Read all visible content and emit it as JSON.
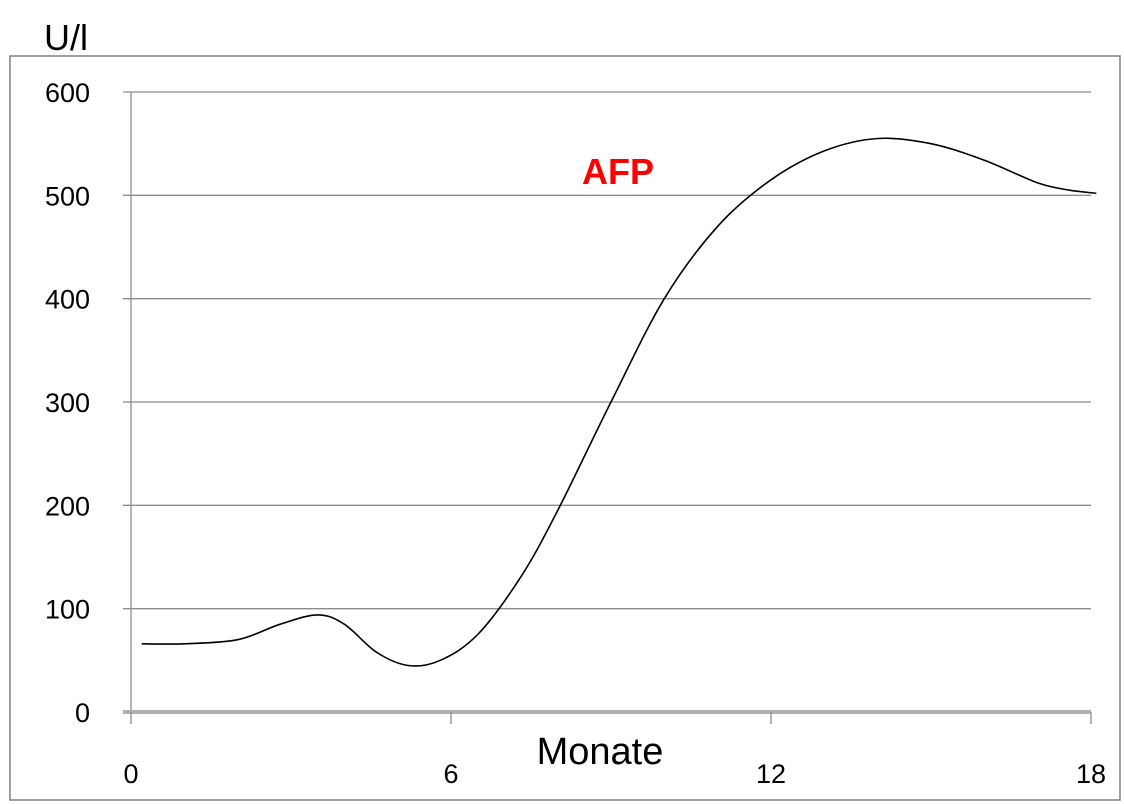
{
  "chart_data": {
    "type": "line",
    "ylabel": "U/l",
    "xlabel": "Monate",
    "xlim": [
      0,
      18
    ],
    "ylim": [
      0,
      600
    ],
    "x_ticks": [
      0,
      6,
      12,
      18
    ],
    "y_ticks": [
      0,
      100,
      200,
      300,
      400,
      500,
      600
    ],
    "grid": true,
    "annotation": {
      "text": "AFP",
      "color": "#ff0000"
    },
    "series": [
      {
        "line_color": "#000000",
        "points": [
          [
            0.2,
            66
          ],
          [
            1.0,
            66
          ],
          [
            2.0,
            70
          ],
          [
            2.8,
            85
          ],
          [
            3.5,
            94
          ],
          [
            4.0,
            85
          ],
          [
            4.6,
            58
          ],
          [
            5.2,
            45
          ],
          [
            5.8,
            50
          ],
          [
            6.5,
            75
          ],
          [
            7.3,
            130
          ],
          [
            8.0,
            195
          ],
          [
            9.0,
            300
          ],
          [
            10.0,
            400
          ],
          [
            11.0,
            470
          ],
          [
            12.0,
            515
          ],
          [
            13.0,
            543
          ],
          [
            14.0,
            555
          ],
          [
            15.0,
            550
          ],
          [
            16.0,
            534
          ],
          [
            17.0,
            512
          ],
          [
            17.6,
            505
          ],
          [
            18.1,
            502
          ]
        ]
      }
    ]
  }
}
